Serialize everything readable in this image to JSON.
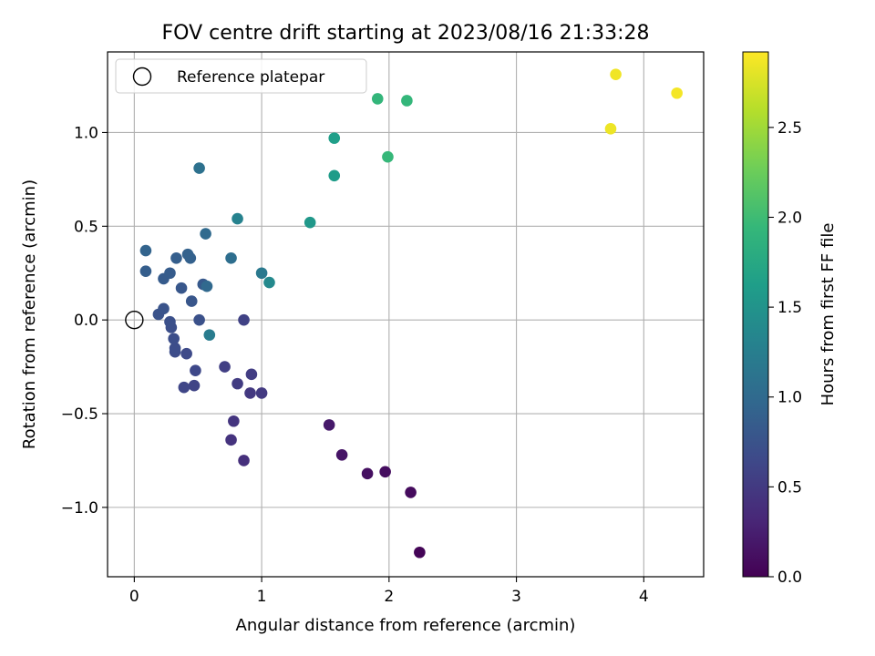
{
  "chart_data": {
    "type": "scatter",
    "title": "FOV centre drift starting at 2023/08/16 21:33:28",
    "xlabel": "Angular distance from reference (arcmin)",
    "ylabel": "Rotation from reference (arcmin)",
    "xlim": [
      -0.21,
      4.47
    ],
    "ylim": [
      -1.37,
      1.43
    ],
    "xticks": [
      0,
      1,
      2,
      3,
      4
    ],
    "xtick_labels": [
      "0",
      "1",
      "2",
      "3",
      "4"
    ],
    "yticks": [
      -1.0,
      -0.5,
      0.0,
      0.5,
      1.0
    ],
    "ytick_labels": [
      "−1.0",
      "−0.5",
      "0.0",
      "0.5",
      "1.0"
    ],
    "grid": true,
    "legend": {
      "placement": "top-left",
      "entries": [
        {
          "label": "Reference platepar",
          "marker": "open-circle",
          "color": "#000000"
        }
      ]
    },
    "reference_point": {
      "x": 0,
      "y": 0
    },
    "colorbar": {
      "label": "Hours from first FF file",
      "range": [
        0.0,
        2.92
      ],
      "ticks": [
        0.0,
        0.5,
        1.0,
        1.5,
        2.0,
        2.5
      ],
      "tick_labels": [
        "0.0",
        "0.5",
        "1.0",
        "1.5",
        "2.0",
        "2.5"
      ],
      "colormap": "viridis",
      "colormap_stops": [
        "#440154",
        "#482878",
        "#3e4989",
        "#31688e",
        "#26828e",
        "#1f9e89",
        "#35b779",
        "#6ece58",
        "#b5de2b",
        "#fde725"
      ]
    },
    "points": [
      {
        "x": 2.24,
        "y": -1.24,
        "hours": 0.03
      },
      {
        "x": 2.17,
        "y": -0.92,
        "hours": 0.08
      },
      {
        "x": 1.97,
        "y": -0.81,
        "hours": 0.1
      },
      {
        "x": 1.83,
        "y": -0.82,
        "hours": 0.12
      },
      {
        "x": 1.63,
        "y": -0.72,
        "hours": 0.16
      },
      {
        "x": 1.53,
        "y": -0.56,
        "hours": 0.2
      },
      {
        "x": 0.86,
        "y": -0.75,
        "hours": 0.4
      },
      {
        "x": 0.76,
        "y": -0.64,
        "hours": 0.43
      },
      {
        "x": 0.78,
        "y": -0.54,
        "hours": 0.45
      },
      {
        "x": 0.91,
        "y": -0.39,
        "hours": 0.48
      },
      {
        "x": 1.0,
        "y": -0.39,
        "hours": 0.5
      },
      {
        "x": 0.81,
        "y": -0.34,
        "hours": 0.52
      },
      {
        "x": 0.92,
        "y": -0.29,
        "hours": 0.53
      },
      {
        "x": 0.71,
        "y": -0.25,
        "hours": 0.55
      },
      {
        "x": 0.86,
        "y": 0.0,
        "hours": 0.58
      },
      {
        "x": 0.47,
        "y": -0.35,
        "hours": 0.6
      },
      {
        "x": 0.39,
        "y": -0.36,
        "hours": 0.62
      },
      {
        "x": 0.48,
        "y": -0.27,
        "hours": 0.64
      },
      {
        "x": 0.41,
        "y": -0.18,
        "hours": 0.66
      },
      {
        "x": 0.32,
        "y": -0.17,
        "hours": 0.68
      },
      {
        "x": 0.32,
        "y": -0.15,
        "hours": 0.69
      },
      {
        "x": 0.31,
        "y": -0.1,
        "hours": 0.7
      },
      {
        "x": 0.29,
        "y": -0.04,
        "hours": 0.71
      },
      {
        "x": 0.28,
        "y": -0.01,
        "hours": 0.72
      },
      {
        "x": 0.51,
        "y": 0.0,
        "hours": 0.73
      },
      {
        "x": 0.19,
        "y": 0.03,
        "hours": 0.75
      },
      {
        "x": 0.23,
        "y": 0.06,
        "hours": 0.76
      },
      {
        "x": 0.45,
        "y": 0.1,
        "hours": 0.78
      },
      {
        "x": 0.37,
        "y": 0.17,
        "hours": 0.8
      },
      {
        "x": 0.54,
        "y": 0.19,
        "hours": 0.82
      },
      {
        "x": 0.23,
        "y": 0.22,
        "hours": 0.84
      },
      {
        "x": 0.28,
        "y": 0.25,
        "hours": 0.85
      },
      {
        "x": 0.09,
        "y": 0.26,
        "hours": 0.87
      },
      {
        "x": 0.33,
        "y": 0.33,
        "hours": 0.88
      },
      {
        "x": 0.44,
        "y": 0.33,
        "hours": 0.9
      },
      {
        "x": 0.42,
        "y": 0.35,
        "hours": 0.91
      },
      {
        "x": 0.09,
        "y": 0.37,
        "hours": 0.93
      },
      {
        "x": 0.57,
        "y": 0.18,
        "hours": 0.98
      },
      {
        "x": 0.56,
        "y": 0.46,
        "hours": 1.0
      },
      {
        "x": 0.76,
        "y": 0.33,
        "hours": 1.05
      },
      {
        "x": 0.51,
        "y": 0.81,
        "hours": 1.08
      },
      {
        "x": 1.0,
        "y": 0.25,
        "hours": 1.18
      },
      {
        "x": 0.59,
        "y": -0.08,
        "hours": 1.22
      },
      {
        "x": 0.81,
        "y": 0.54,
        "hours": 1.3
      },
      {
        "x": 1.06,
        "y": 0.2,
        "hours": 1.38
      },
      {
        "x": 1.38,
        "y": 0.52,
        "hours": 1.55
      },
      {
        "x": 1.57,
        "y": 0.77,
        "hours": 1.6
      },
      {
        "x": 1.57,
        "y": 0.97,
        "hours": 1.63
      },
      {
        "x": 1.99,
        "y": 0.87,
        "hours": 1.95
      },
      {
        "x": 2.14,
        "y": 1.17,
        "hours": 1.93
      },
      {
        "x": 1.91,
        "y": 1.18,
        "hours": 1.92
      },
      {
        "x": 3.74,
        "y": 1.02,
        "hours": 2.85
      },
      {
        "x": 3.78,
        "y": 1.31,
        "hours": 2.86
      },
      {
        "x": 4.26,
        "y": 1.21,
        "hours": 2.88
      }
    ]
  }
}
